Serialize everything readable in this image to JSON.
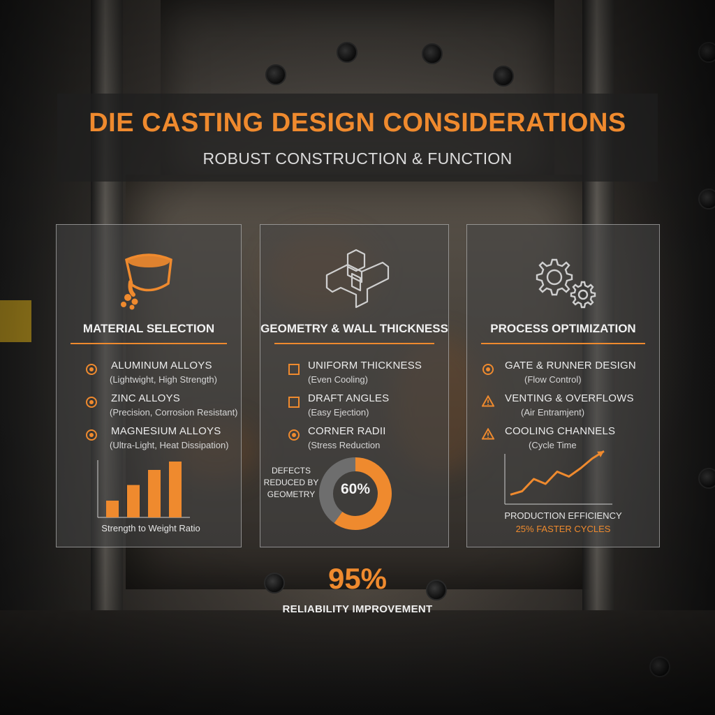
{
  "title": "DIE CASTING DESIGN CONSIDERATIONS",
  "subtitle": "ROBUST CONSTRUCTION & FUNCTION",
  "colors": {
    "accent": "#ef8a2e",
    "panel_border": "#d2d2d2",
    "gray": "#6e6e6e"
  },
  "panels": [
    {
      "icon": "molten-metal-ladle-icon",
      "title": "MATERIAL SELECTION",
      "items": [
        {
          "bullet": "target",
          "title": "ALUMINUM ALLOYS",
          "sub": "(Lightwight, High Strength)"
        },
        {
          "bullet": "target",
          "title": "ZINC ALLOYS",
          "sub": "(Precision, Corrosion Resistant)"
        },
        {
          "bullet": "target",
          "title": "MAGNESIUM ALLOYS",
          "sub": "(Ultra-Light, Heat Dissipation)"
        }
      ]
    },
    {
      "icon": "mold-part-geometry-icon",
      "title": "GEOMETRY & WALL THICKNESS",
      "items": [
        {
          "bullet": "square",
          "title": "UNIFORM THICKNESS",
          "sub": "(Even Cooling)"
        },
        {
          "bullet": "square",
          "title": "DRAFT ANGLES",
          "sub": "(Easy Ejection)"
        },
        {
          "bullet": "target",
          "title": "CORNER RADII",
          "sub": "(Stress Reduction"
        }
      ]
    },
    {
      "icon": "gears-icon",
      "title": "PROCESS OPTIMIZATION",
      "items": [
        {
          "bullet": "target",
          "title": "GATE & RUNNER DESIGN",
          "sub": "(Flow Control)"
        },
        {
          "bullet": "warning",
          "title": "VENTING & OVERFLOWS",
          "sub": "(Air Entramjent)"
        },
        {
          "bullet": "warning",
          "title": "COOLING CHANNELS",
          "sub": "(Cycle Time"
        }
      ]
    }
  ],
  "chart_data": [
    {
      "type": "bar",
      "title": "",
      "xlabel": "Strength to Weight Ratio",
      "ylabel": "",
      "values": [
        0.3,
        0.58,
        0.85,
        1.0
      ],
      "ylim": [
        0,
        1.0
      ]
    },
    {
      "type": "pie",
      "title": "DEFECTS REDUCED BY GEOMETRY",
      "center_label": "60%",
      "values": [
        60,
        40
      ],
      "colors": [
        "#ef8a2e",
        "#6e6e6e"
      ]
    },
    {
      "type": "line",
      "title": "PRODUCTION EFFICIENCY",
      "caption": "25% FASTER CYCLES",
      "x": [
        0,
        1,
        2,
        3,
        4,
        5,
        6,
        7,
        8
      ],
      "values": [
        0.08,
        0.15,
        0.4,
        0.3,
        0.55,
        0.45,
        0.62,
        0.82,
        0.97
      ],
      "ylim": [
        0,
        1.0
      ]
    }
  ],
  "stat": {
    "value": "95%",
    "label": "RELIABILITY IMPROVEMENT"
  }
}
